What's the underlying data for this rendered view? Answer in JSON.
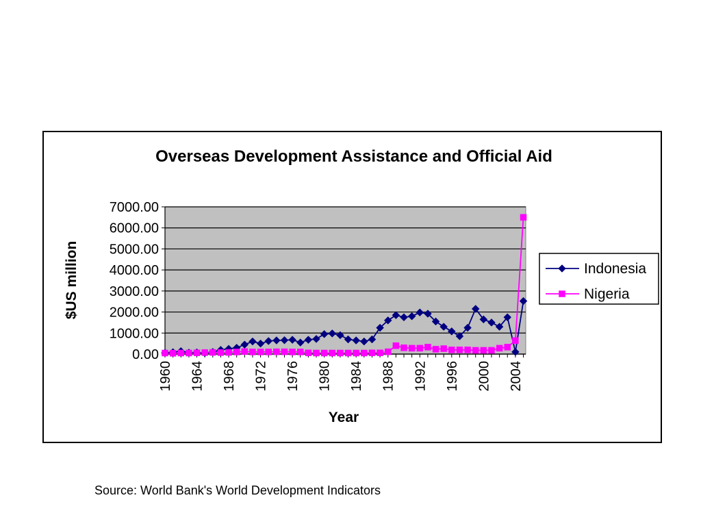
{
  "chart_data": {
    "type": "line",
    "title": "Overseas Development Assistance and Official Aid",
    "xlabel": "Year",
    "ylabel": "$US million",
    "x": [
      1960,
      1961,
      1962,
      1963,
      1964,
      1965,
      1966,
      1967,
      1968,
      1969,
      1970,
      1971,
      1972,
      1973,
      1974,
      1975,
      1976,
      1977,
      1978,
      1979,
      1980,
      1981,
      1982,
      1983,
      1984,
      1985,
      1986,
      1987,
      1988,
      1989,
      1990,
      1991,
      1992,
      1993,
      1994,
      1995,
      1996,
      1997,
      1998,
      1999,
      2000,
      2001,
      2002,
      2003,
      2004,
      2005
    ],
    "x_tick_labels": [
      "1960",
      "1964",
      "1968",
      "1972",
      "1976",
      "1980",
      "1984",
      "1988",
      "1992",
      "1996",
      "2000",
      "2004"
    ],
    "y_tick_labels": [
      "0.00",
      "1000.00",
      "2000.00",
      "3000.00",
      "4000.00",
      "5000.00",
      "6000.00",
      "7000.00"
    ],
    "ylim": [
      0,
      7000
    ],
    "grid": "horizontal major gridlines",
    "plot_background": "#c0c0c0",
    "legend_position": "right",
    "series": [
      {
        "name": "Indonesia",
        "color": "#000080",
        "marker": "diamond",
        "values": [
          60,
          90,
          140,
          70,
          80,
          50,
          100,
          200,
          250,
          300,
          450,
          600,
          500,
          620,
          650,
          660,
          680,
          550,
          680,
          720,
          950,
          980,
          900,
          700,
          650,
          600,
          700,
          1250,
          1600,
          1850,
          1750,
          1800,
          1980,
          1920,
          1550,
          1300,
          1080,
          850,
          1250,
          2150,
          1650,
          1500,
          1300,
          1750,
          100,
          2520
        ]
      },
      {
        "name": "Nigeria",
        "color": "#ff00ff",
        "marker": "square",
        "values": [
          50,
          40,
          50,
          50,
          60,
          70,
          80,
          70,
          80,
          100,
          120,
          100,
          100,
          100,
          110,
          110,
          100,
          100,
          60,
          50,
          50,
          50,
          50,
          50,
          50,
          50,
          60,
          60,
          110,
          400,
          300,
          280,
          280,
          330,
          230,
          260,
          200,
          200,
          200,
          180,
          180,
          180,
          280,
          330,
          640,
          6500
        ]
      }
    ]
  },
  "source": "Source: World Bank's World Development Indicators"
}
